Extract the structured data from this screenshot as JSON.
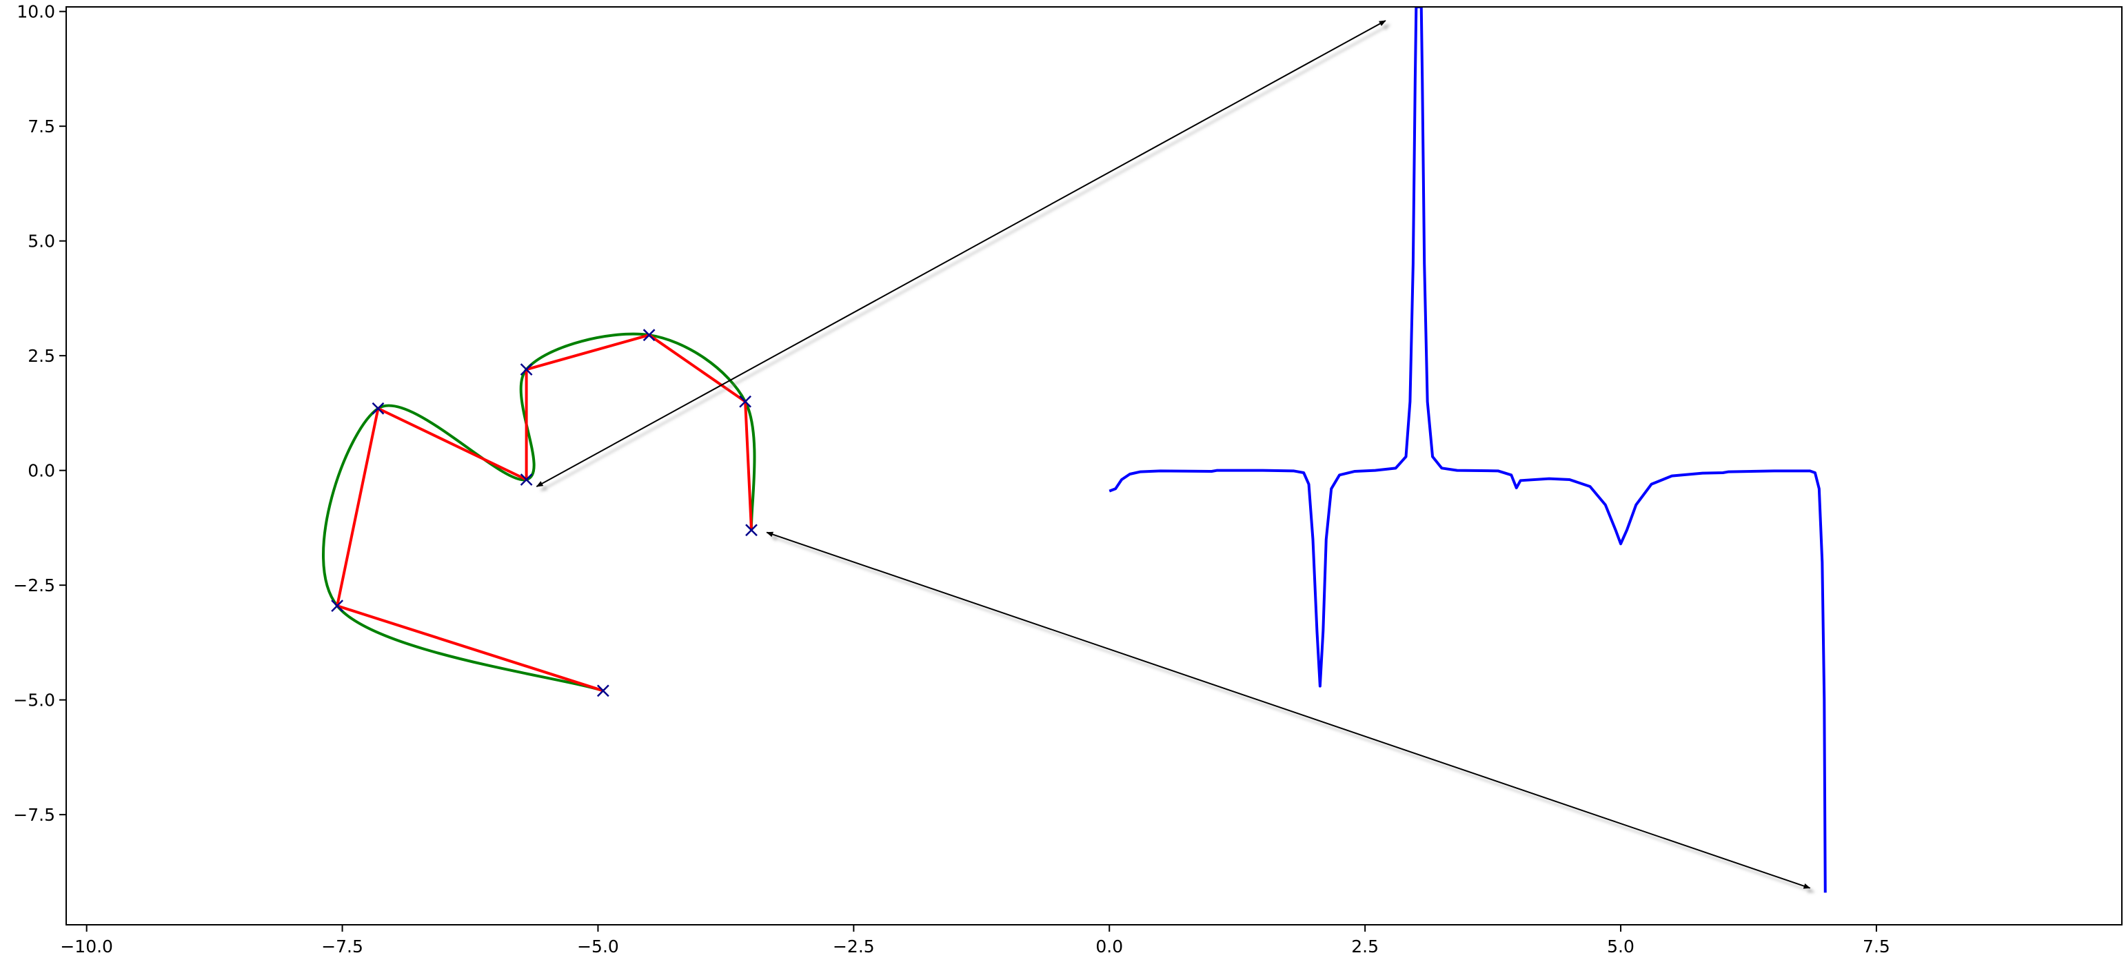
{
  "chart_data": {
    "type": "line",
    "title": "",
    "xlabel": "",
    "ylabel": "",
    "xlim": [
      -10.2,
      9.9
    ],
    "ylim": [
      -9.9,
      10.1
    ],
    "grid": false,
    "x_ticks": [
      {
        "value": -10.0,
        "label": "−10.0"
      },
      {
        "value": -7.5,
        "label": "−7.5"
      },
      {
        "value": -5.0,
        "label": "−5.0"
      },
      {
        "value": -2.5,
        "label": "−2.5"
      },
      {
        "value": 0.0,
        "label": "0.0"
      },
      {
        "value": 2.5,
        "label": "2.5"
      },
      {
        "value": 5.0,
        "label": "5.0"
      },
      {
        "value": 7.5,
        "label": "7.5"
      }
    ],
    "y_ticks": [
      {
        "value": 10.0,
        "label": "10.0"
      },
      {
        "value": 7.5,
        "label": "7.5"
      },
      {
        "value": 5.0,
        "label": "5.0"
      },
      {
        "value": 2.5,
        "label": "2.5"
      },
      {
        "value": 0.0,
        "label": "0.0"
      },
      {
        "value": -2.5,
        "label": "−2.5"
      },
      {
        "value": -5.0,
        "label": "−5.0"
      },
      {
        "value": -7.5,
        "label": "−7.5"
      }
    ],
    "series": [
      {
        "kind": "polyline",
        "color": "#ff0000",
        "marker": "x",
        "marker_color": "#00008b",
        "points": [
          [
            -3.5,
            -1.3
          ],
          [
            -3.56,
            1.5
          ],
          [
            -4.5,
            2.95
          ],
          [
            -5.7,
            2.2
          ],
          [
            -5.7,
            -0.2
          ],
          [
            -7.15,
            1.35
          ],
          [
            -7.55,
            -2.95
          ],
          [
            -4.95,
            -4.8
          ]
        ]
      },
      {
        "kind": "smooth-spline",
        "color": "#008000",
        "through": [
          [
            -3.5,
            -1.3
          ],
          [
            -3.56,
            1.5
          ],
          [
            -4.5,
            2.95
          ],
          [
            -5.7,
            2.2
          ],
          [
            -5.7,
            -0.2
          ],
          [
            -7.15,
            1.35
          ],
          [
            -7.55,
            -2.95
          ],
          [
            -4.95,
            -4.8
          ]
        ]
      },
      {
        "kind": "line",
        "color": "#0000ff",
        "points": [
          [
            0.0,
            -0.45
          ],
          [
            0.06,
            -0.4
          ],
          [
            0.12,
            -0.2
          ],
          [
            0.2,
            -0.08
          ],
          [
            0.3,
            -0.03
          ],
          [
            0.5,
            -0.01
          ],
          [
            1.0,
            -0.02
          ],
          [
            1.05,
            0.0
          ],
          [
            1.5,
            0.0
          ],
          [
            1.8,
            -0.01
          ],
          [
            1.9,
            -0.05
          ],
          [
            1.95,
            -0.3
          ],
          [
            1.99,
            -1.5
          ],
          [
            2.03,
            -3.5
          ],
          [
            2.06,
            -4.7
          ],
          [
            2.09,
            -3.5
          ],
          [
            2.12,
            -1.5
          ],
          [
            2.17,
            -0.4
          ],
          [
            2.25,
            -0.1
          ],
          [
            2.4,
            -0.02
          ],
          [
            2.6,
            0.0
          ],
          [
            2.8,
            0.05
          ],
          [
            2.9,
            0.3
          ],
          [
            2.94,
            1.5
          ],
          [
            2.97,
            4.5
          ],
          [
            2.99,
            8.5
          ],
          [
            3.0,
            10.1
          ],
          [
            3.05,
            10.1
          ],
          [
            3.06,
            8.5
          ],
          [
            3.08,
            4.5
          ],
          [
            3.11,
            1.5
          ],
          [
            3.16,
            0.3
          ],
          [
            3.25,
            0.05
          ],
          [
            3.4,
            0.0
          ],
          [
            3.8,
            -0.01
          ],
          [
            3.93,
            -0.1
          ],
          [
            3.98,
            -0.38
          ],
          [
            4.02,
            -0.22
          ],
          [
            4.3,
            -0.18
          ],
          [
            4.5,
            -0.2
          ],
          [
            4.7,
            -0.35
          ],
          [
            4.85,
            -0.75
          ],
          [
            4.95,
            -1.3
          ],
          [
            5.0,
            -1.6
          ],
          [
            5.06,
            -1.3
          ],
          [
            5.15,
            -0.75
          ],
          [
            5.3,
            -0.3
          ],
          [
            5.5,
            -0.12
          ],
          [
            5.8,
            -0.06
          ],
          [
            6.0,
            -0.05
          ],
          [
            6.05,
            -0.03
          ],
          [
            6.5,
            -0.01
          ],
          [
            6.85,
            -0.01
          ],
          [
            6.9,
            -0.05
          ],
          [
            6.94,
            -0.4
          ],
          [
            6.97,
            -2.0
          ],
          [
            6.99,
            -5.0
          ],
          [
            7.0,
            -9.2
          ]
        ]
      }
    ],
    "annotations": [
      {
        "type": "double-arrow",
        "from": [
          -5.6,
          -0.35
        ],
        "to": [
          2.7,
          9.8
        ],
        "color": "#000000"
      },
      {
        "type": "double-arrow",
        "from": [
          -3.35,
          -1.35
        ],
        "to": [
          6.85,
          -9.1
        ],
        "color": "#000000"
      }
    ]
  }
}
